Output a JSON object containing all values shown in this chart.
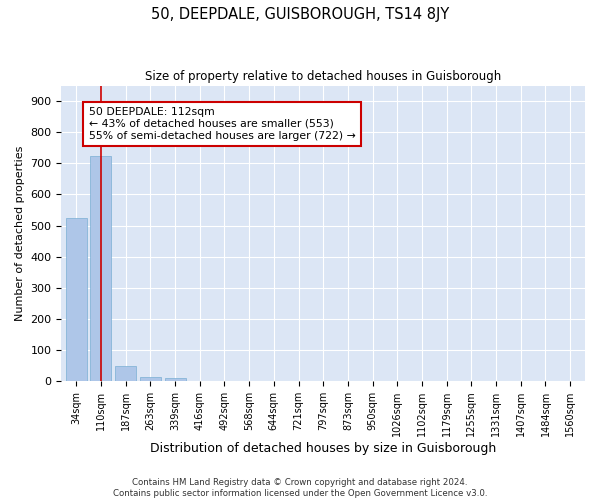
{
  "title": "50, DEEPDALE, GUISBOROUGH, TS14 8JY",
  "subtitle": "Size of property relative to detached houses in Guisborough",
  "xlabel": "Distribution of detached houses by size in Guisborough",
  "ylabel": "Number of detached properties",
  "categories": [
    "34sqm",
    "110sqm",
    "187sqm",
    "263sqm",
    "339sqm",
    "416sqm",
    "492sqm",
    "568sqm",
    "644sqm",
    "721sqm",
    "797sqm",
    "873sqm",
    "950sqm",
    "1026sqm",
    "1102sqm",
    "1179sqm",
    "1255sqm",
    "1331sqm",
    "1407sqm",
    "1484sqm",
    "1560sqm"
  ],
  "bar_values": [
    525,
    725,
    48,
    12,
    10,
    0,
    0,
    0,
    0,
    0,
    0,
    0,
    0,
    0,
    0,
    0,
    0,
    0,
    0,
    0,
    0
  ],
  "bar_color": "#aec6e8",
  "bar_edge_color": "#7aafd4",
  "annotation_text_line1": "50 DEEPDALE: 112sqm",
  "annotation_text_line2": "← 43% of detached houses are smaller (553)",
  "annotation_text_line3": "55% of semi-detached houses are larger (722) →",
  "annotation_box_color": "#ffffff",
  "annotation_box_edge": "#cc0000",
  "vline_x": 1.0,
  "vline_color": "#cc0000",
  "background_color": "#ffffff",
  "plot_bg_color": "#dce6f5",
  "grid_color": "#ffffff",
  "ylim": [
    0,
    950
  ],
  "yticks": [
    0,
    100,
    200,
    300,
    400,
    500,
    600,
    700,
    800,
    900
  ],
  "footnote_line1": "Contains HM Land Registry data © Crown copyright and database right 2024.",
  "footnote_line2": "Contains public sector information licensed under the Open Government Licence v3.0."
}
